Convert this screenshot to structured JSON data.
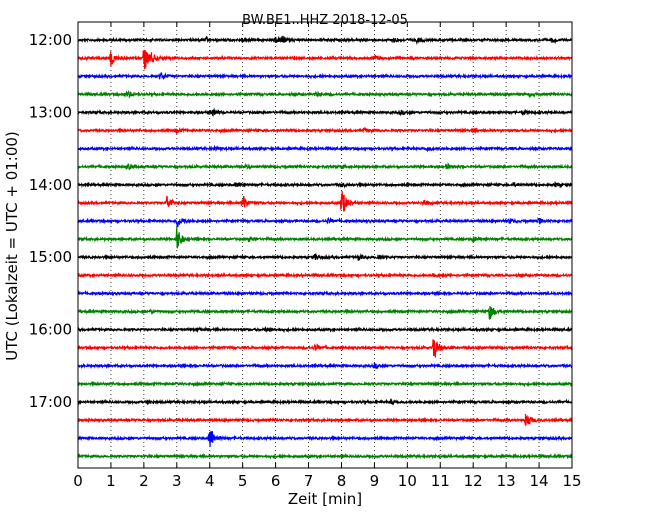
{
  "chart_data": {
    "type": "line",
    "title": "BW.BE1..HHZ 2018-12-05",
    "xlabel": "Zeit  [min]",
    "ylabel": "UTC (Lokalzeit = UTC + 01:00)",
    "xlim": [
      0,
      15
    ],
    "x_ticks": [
      "0",
      "1",
      "2",
      "3",
      "4",
      "5",
      "6",
      "7",
      "8",
      "9",
      "10",
      "11",
      "12",
      "13",
      "14",
      "15"
    ],
    "y_tick_labels": [
      "12:00",
      "13:00",
      "14:00",
      "15:00",
      "16:00",
      "17:00"
    ],
    "grid": "vertical dotted",
    "colors": [
      "#000000",
      "#ff0000",
      "#0000ff",
      "#008000"
    ],
    "series": [
      {
        "start": "12:00",
        "events": [
          {
            "t": 3.9,
            "a": 0.25
          },
          {
            "t": 5.0,
            "a": 0.3
          },
          {
            "t": 6.0,
            "a": 0.3
          },
          {
            "t": 6.2,
            "a": 0.3
          },
          {
            "t": 9.6,
            "a": 0.25
          },
          {
            "t": 10.3,
            "a": 0.3
          },
          {
            "t": 14.4,
            "a": 0.3
          }
        ]
      },
      {
        "start": "12:15",
        "events": [
          {
            "t": 1.0,
            "a": 0.9
          },
          {
            "t": 2.0,
            "a": 1.4
          },
          {
            "t": 2.2,
            "a": 0.5
          },
          {
            "t": 9.0,
            "a": 0.35
          }
        ]
      },
      {
        "start": "12:30",
        "events": [
          {
            "t": 2.5,
            "a": 0.4
          }
        ]
      },
      {
        "start": "12:45",
        "events": [
          {
            "t": 1.5,
            "a": 0.35
          },
          {
            "t": 7.2,
            "a": 0.2
          },
          {
            "t": 13.7,
            "a": 0.2
          }
        ]
      },
      {
        "start": "13:00",
        "events": [
          {
            "t": 4.1,
            "a": 0.4
          },
          {
            "t": 9.8,
            "a": 0.2
          },
          {
            "t": 13.5,
            "a": 0.25
          }
        ]
      },
      {
        "start": "13:15",
        "events": [
          {
            "t": 3.0,
            "a": 0.3
          },
          {
            "t": 8.7,
            "a": 0.2
          },
          {
            "t": 12.0,
            "a": 0.2
          }
        ]
      },
      {
        "start": "13:30",
        "events": [
          {
            "t": 4.1,
            "a": 0.2
          },
          {
            "t": 10.6,
            "a": 0.2
          }
        ]
      },
      {
        "start": "13:45",
        "events": [
          {
            "t": 1.5,
            "a": 0.3
          },
          {
            "t": 5.1,
            "a": 0.15
          },
          {
            "t": 8.0,
            "a": 0.2
          },
          {
            "t": 11.2,
            "a": 0.3
          }
        ]
      },
      {
        "start": "14:00",
        "events": [
          {
            "t": 4.8,
            "a": 0.3
          },
          {
            "t": 8.0,
            "a": 0.2
          },
          {
            "t": 13.2,
            "a": 0.2
          },
          {
            "t": 14.5,
            "a": 0.2
          }
        ]
      },
      {
        "start": "14:15",
        "events": [
          {
            "t": 2.7,
            "a": 0.8
          },
          {
            "t": 5.0,
            "a": 0.9
          },
          {
            "t": 8.0,
            "a": 1.7
          },
          {
            "t": 10.5,
            "a": 0.3
          }
        ]
      },
      {
        "start": "14:30",
        "events": [
          {
            "t": 3.0,
            "a": 0.8
          },
          {
            "t": 7.6,
            "a": 0.3
          },
          {
            "t": 13.1,
            "a": 0.3
          },
          {
            "t": 14.0,
            "a": 0.3
          }
        ]
      },
      {
        "start": "14:45",
        "events": [
          {
            "t": 3.0,
            "a": 1.4
          },
          {
            "t": 5.2,
            "a": 0.3
          },
          {
            "t": 12.0,
            "a": 0.3
          }
        ]
      },
      {
        "start": "15:00",
        "events": [
          {
            "t": 7.2,
            "a": 0.35
          },
          {
            "t": 8.5,
            "a": 0.3
          },
          {
            "t": 9.1,
            "a": 0.3
          }
        ]
      },
      {
        "start": "15:15",
        "events": [
          {
            "t": 10.8,
            "a": 0.3
          }
        ]
      },
      {
        "start": "15:30",
        "events": []
      },
      {
        "start": "15:45",
        "events": [
          {
            "t": 2.2,
            "a": 0.15
          },
          {
            "t": 12.5,
            "a": 0.9
          }
        ]
      },
      {
        "start": "16:00",
        "events": [
          {
            "t": 3.6,
            "a": 0.2
          },
          {
            "t": 5.7,
            "a": 0.2
          }
        ]
      },
      {
        "start": "16:15",
        "events": [
          {
            "t": 7.2,
            "a": 0.4
          },
          {
            "t": 10.8,
            "a": 1.4
          }
        ]
      },
      {
        "start": "16:30",
        "events": [
          {
            "t": 9.0,
            "a": 0.25
          }
        ]
      },
      {
        "start": "16:45",
        "events": []
      },
      {
        "start": "17:00",
        "events": [
          {
            "t": 2.1,
            "a": 0.2
          },
          {
            "t": 9.5,
            "a": 0.25
          }
        ]
      },
      {
        "start": "17:15",
        "events": [
          {
            "t": 13.6,
            "a": 1.0
          }
        ]
      },
      {
        "start": "17:30",
        "events": [
          {
            "t": 4.0,
            "a": 1.4
          }
        ]
      },
      {
        "start": "17:45",
        "events": []
      }
    ]
  }
}
